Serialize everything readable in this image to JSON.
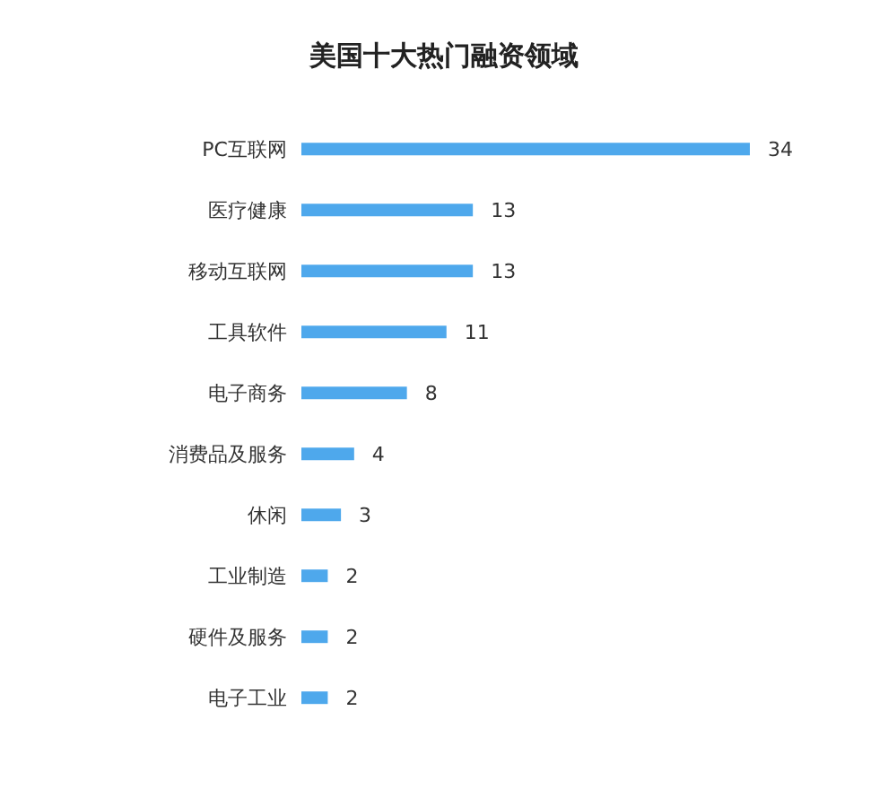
{
  "chart_data": {
    "type": "bar",
    "orientation": "horizontal",
    "title": "美国十大热门融资领域",
    "categories": [
      "PC互联网",
      "医疗健康",
      "移动互联网",
      "工具软件",
      "电子商务",
      "消费品及服务",
      "休闲",
      "工业制造",
      "硬件及服务",
      "电子工业"
    ],
    "values": [
      34,
      13,
      13,
      11,
      8,
      4,
      3,
      2,
      2,
      2
    ],
    "color": "#4ea8ec",
    "data_labels": true
  }
}
